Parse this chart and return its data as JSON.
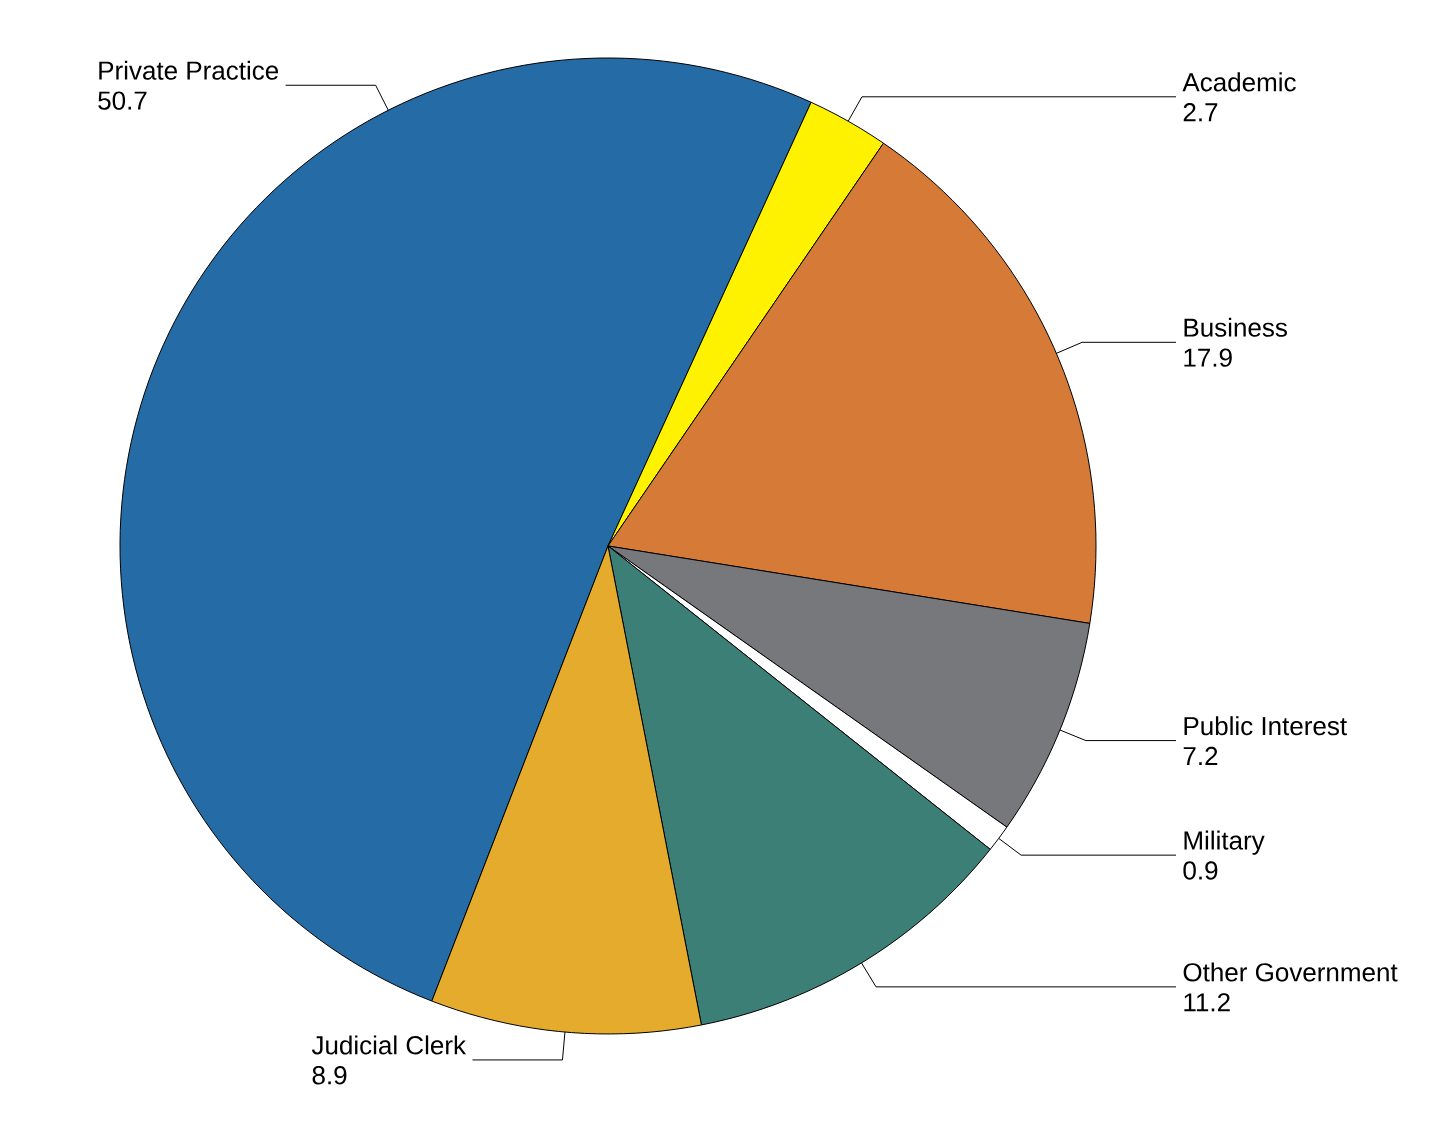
{
  "chart_data": {
    "type": "pie",
    "categories": [
      "Private Practice",
      "Academic",
      "Business",
      "Public Interest",
      "Military",
      "Other Government",
      "Judicial Clerk"
    ],
    "values": [
      50.7,
      2.7,
      17.9,
      7.2,
      0.9,
      11.2,
      8.9
    ],
    "colors": [
      "#256ca6",
      "#fff200",
      "#d57b37",
      "#77787b",
      "#ffffff",
      "#3b7f77",
      "#e5ab2c"
    ],
    "data_labels": true
  }
}
